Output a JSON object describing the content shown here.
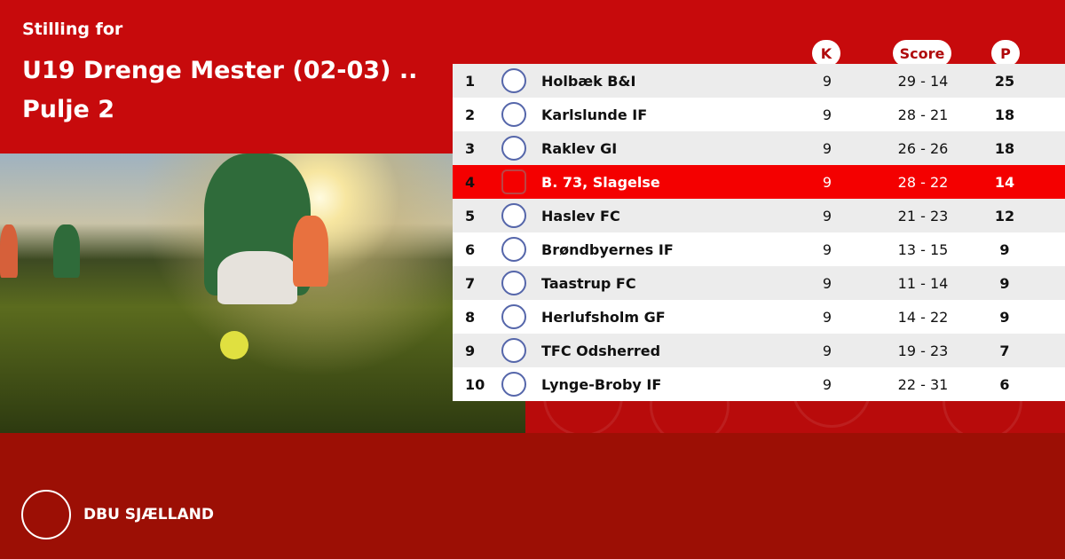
{
  "header": {
    "subtitle": "Stilling for",
    "title": "U19 Drenge Mester (02-03) .. Pulje 2"
  },
  "columns": {
    "k": "K",
    "score": "Score",
    "p": "P"
  },
  "highlight_color": "#f40000",
  "rows": [
    {
      "pos": "1",
      "team": "Holbæk B&I",
      "k": "9",
      "score": "29 - 14",
      "p": "25"
    },
    {
      "pos": "2",
      "team": "Karlslunde IF",
      "k": "9",
      "score": "28 - 21",
      "p": "18"
    },
    {
      "pos": "3",
      "team": "Raklev GI",
      "k": "9",
      "score": "26 - 26",
      "p": "18"
    },
    {
      "pos": "4",
      "team": "B. 73, Slagelse",
      "k": "9",
      "score": "28 - 22",
      "p": "14"
    },
    {
      "pos": "5",
      "team": "Haslev FC",
      "k": "9",
      "score": "21 - 23",
      "p": "12"
    },
    {
      "pos": "6",
      "team": "Brøndbyernes IF",
      "k": "9",
      "score": "13 - 15",
      "p": "9"
    },
    {
      "pos": "7",
      "team": "Taastrup FC",
      "k": "9",
      "score": "11 - 14",
      "p": "9"
    },
    {
      "pos": "8",
      "team": "Herlufsholm GF",
      "k": "9",
      "score": "14 - 22",
      "p": "9"
    },
    {
      "pos": "9",
      "team": "TFC Odsherred",
      "k": "9",
      "score": "19 - 23",
      "p": "7"
    },
    {
      "pos": "10",
      "team": "Lynge-Broby IF",
      "k": "9",
      "score": "22 - 31",
      "p": "6"
    }
  ],
  "footer": {
    "brand": "DBU SJÆLLAND",
    "seal": "DBU"
  }
}
